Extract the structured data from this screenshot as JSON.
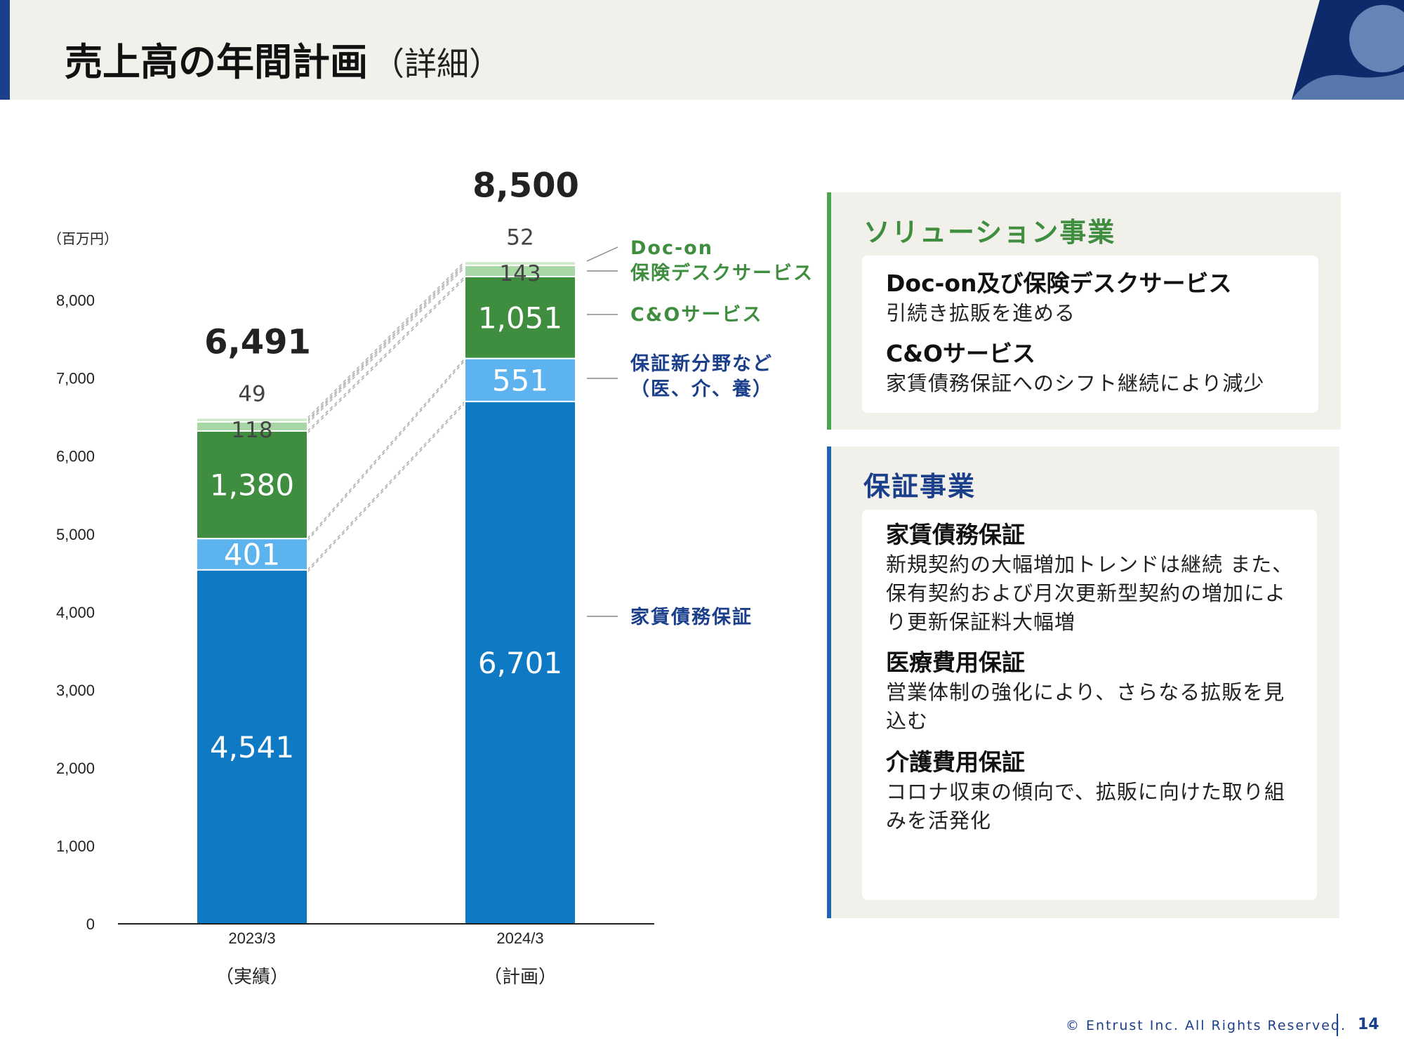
{
  "header": {
    "title": "売上高の年間計画",
    "subtitle": "（詳細）"
  },
  "colors": {
    "rent_guarantee": "#0f7ac4",
    "new_fields": "#5db3ee",
    "co_service": "#3f8d3f",
    "insurance_desk": "#a7d7a4",
    "doc_on": "#cfe9cb",
    "solution_accent": "#3f8d3f",
    "guarantee_accent": "#1f63b0",
    "label_green": "#3f8d3f",
    "label_navy": "#1b3f8a"
  },
  "chart_data": {
    "type": "bar",
    "stacked": true,
    "unit_label": "（百万円）",
    "categories": [
      "2023/3",
      "2024/3"
    ],
    "category_notes": [
      "（実績）",
      "（計画）"
    ],
    "ylim": [
      0,
      8500
    ],
    "yticks": [
      "0",
      "1,000",
      "2,000",
      "3,000",
      "4,000",
      "5,000",
      "6,000",
      "7,000",
      "8,000"
    ],
    "totals": [
      "6,491",
      "8,500"
    ],
    "total_values": [
      6491,
      8500
    ],
    "series": [
      {
        "name": "家賃債務保証",
        "values": [
          4541,
          6701
        ],
        "labels": [
          "4,541",
          "6,701"
        ]
      },
      {
        "name": "保証新分野など（医、介、養）",
        "values": [
          401,
          551
        ],
        "labels": [
          "401",
          "551"
        ]
      },
      {
        "name": "C&Oサービス",
        "values": [
          1380,
          1051
        ],
        "labels": [
          "1,380",
          "1,051"
        ]
      },
      {
        "name": "保険デスクサービス",
        "values": [
          118,
          143
        ],
        "labels": [
          "118",
          "143"
        ]
      },
      {
        "name": "Doc-on",
        "values": [
          49,
          52
        ],
        "labels": [
          "49",
          "52"
        ]
      }
    ],
    "legend": {
      "doc_on": "Doc-on",
      "insurance_desk": "保険デスクサービス",
      "co_service": "C&Oサービス",
      "new_fields_1": "保証新分野など",
      "new_fields_2": "（医、介、養）",
      "rent": "家賃債務保証"
    },
    "legend_placement": "right"
  },
  "solution_panel": {
    "title": "ソリューション事業",
    "items": [
      {
        "heading": "Doc-on及び保険デスクサービス",
        "body": "引続き拡販を進める"
      },
      {
        "heading": "C&Oサービス",
        "body": "家賃債務保証へのシフト継続により減少"
      }
    ]
  },
  "guarantee_panel": {
    "title": "保証事業",
    "items": [
      {
        "heading": "家賃債務保証",
        "body": "新規契約の大幅増加トレンドは継続 また、保有契約および月次更新型契約の増加により更新保証料大幅増"
      },
      {
        "heading": "医療費用保証",
        "body": "営業体制の強化により、さらなる拡販を見込む"
      },
      {
        "heading": "介護費用保証",
        "body": "コロナ収束の傾向で、拡販に向けた取り組みを活発化"
      }
    ]
  },
  "footer": {
    "copyright": "© Entrust Inc. All Rights Reserved.",
    "page": "14"
  }
}
